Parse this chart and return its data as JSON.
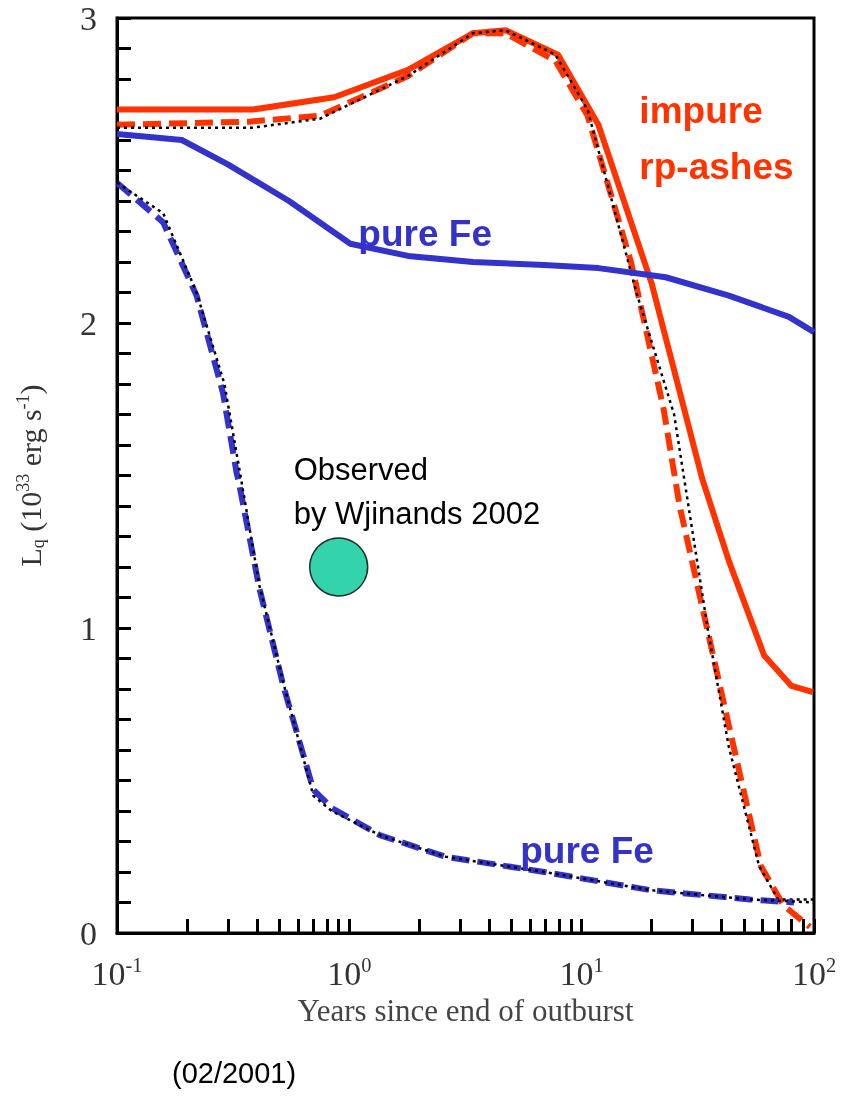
{
  "chart_data": {
    "type": "line",
    "xlabel": "Years since end of outburst",
    "ylabel": "L$_{q}$ (10$^{33}$ erg s$^{-1}$)",
    "log": "x",
    "xlim": [
      0.1,
      100
    ],
    "ylim": [
      0,
      3
    ],
    "xticks": [
      {
        "value": 0.1,
        "label": "10$^{-1}$"
      },
      {
        "value": 0.2,
        "label": null
      },
      {
        "value": 0.3,
        "label": null
      },
      {
        "value": 0.4,
        "label": null
      },
      {
        "value": 0.5,
        "label": null
      },
      {
        "value": 0.6,
        "label": null
      },
      {
        "value": 0.7,
        "label": null
      },
      {
        "value": 0.8,
        "label": null
      },
      {
        "value": 0.9,
        "label": null
      },
      {
        "value": 1,
        "label": "10$^{0}$"
      },
      {
        "value": 2,
        "label": null
      },
      {
        "value": 3,
        "label": null
      },
      {
        "value": 4,
        "label": null
      },
      {
        "value": 5,
        "label": null
      },
      {
        "value": 6,
        "label": null
      },
      {
        "value": 7,
        "label": null
      },
      {
        "value": 8,
        "label": null
      },
      {
        "value": 9,
        "label": null
      },
      {
        "value": 10,
        "label": "10$^{1}$"
      },
      {
        "value": 20,
        "label": null
      },
      {
        "value": 30,
        "label": null
      },
      {
        "value": 40,
        "label": null
      },
      {
        "value": 50,
        "label": null
      },
      {
        "value": 60,
        "label": null
      },
      {
        "value": 70,
        "label": null
      },
      {
        "value": 80,
        "label": null
      },
      {
        "value": 90,
        "label": null
      },
      {
        "value": 100,
        "label": "10$^{2}$"
      }
    ],
    "yticks": [
      0,
      {
        "value": 0.1,
        "label": null
      },
      {
        "value": 0.2,
        "label": null
      },
      {
        "value": 0.3,
        "label": null
      },
      {
        "value": 0.4,
        "label": null
      },
      {
        "value": 0.5,
        "label": null
      },
      {
        "value": 0.6,
        "label": null
      },
      {
        "value": 0.7,
        "label": null
      },
      {
        "value": 0.8,
        "label": null
      },
      {
        "value": 0.9,
        "label": null
      },
      1,
      {
        "value": 1.1,
        "label": null
      },
      {
        "value": 1.2,
        "label": null
      },
      {
        "value": 1.3,
        "label": null
      },
      {
        "value": 1.4,
        "label": null
      },
      {
        "value": 1.5,
        "label": null
      },
      {
        "value": 1.6,
        "label": null
      },
      {
        "value": 1.7,
        "label": null
      },
      {
        "value": 1.8,
        "label": null
      },
      {
        "value": 1.9,
        "label": null
      },
      2,
      {
        "value": 2.1,
        "label": null
      },
      {
        "value": 2.2,
        "label": null
      },
      {
        "value": 2.3,
        "label": null
      },
      {
        "value": 2.4,
        "label": null
      },
      {
        "value": 2.5,
        "label": null
      },
      {
        "value": 2.6,
        "label": null
      },
      {
        "value": 2.7,
        "label": null
      },
      {
        "value": 2.8,
        "label": null
      },
      {
        "value": 2.9,
        "label": null
      },
      3
    ],
    "grid": false,
    "legend": false,
    "marker": "none",
    "series": [
      {
        "name": "impure rp-ashes",
        "color": "#ff3300",
        "line_style": "solid",
        "x": [
          0.1,
          0.385,
          0.86,
          1.79,
          3.4,
          4.7,
          7.9,
          11.8,
          20,
          33,
          43,
          61,
          80,
          99
        ],
        "values": [
          2.7,
          2.7,
          2.74,
          2.83,
          2.95,
          2.96,
          2.88,
          2.65,
          2.13,
          1.49,
          1.22,
          0.91,
          0.81,
          0.79
        ]
      },
      {
        "color": "#ff3300",
        "line_style": "dashed",
        "x": [
          0.1,
          0.37,
          0.75,
          1.79,
          3.4,
          4.7,
          7.7,
          10.6,
          16.3,
          22.5,
          26.4,
          43,
          59,
          74,
          96
        ],
        "values": [
          2.65,
          2.66,
          2.68,
          2.81,
          2.95,
          2.95,
          2.86,
          2.68,
          2.2,
          1.72,
          1.4,
          0.68,
          0.22,
          0.09,
          0.02
        ]
      },
      {
        "color": "#000000",
        "line_style": "dotted",
        "x": [
          0.1,
          0.38,
          0.75,
          1.79,
          3.4,
          4.7,
          7.7,
          10.6,
          17.2,
          25,
          35,
          43,
          58,
          70,
          100
        ],
        "values": [
          2.64,
          2.64,
          2.67,
          2.81,
          2.95,
          2.96,
          2.88,
          2.7,
          2.1,
          1.7,
          0.99,
          0.61,
          0.22,
          0.11,
          0.11
        ]
      },
      {
        "name": "pure Fe",
        "color": "#3333cc",
        "line_style": "solid",
        "x": [
          0.1,
          0.19,
          0.3,
          0.55,
          1.01,
          1.79,
          3.4,
          6.9,
          11.8,
          23,
          43,
          78,
          100
        ],
        "values": [
          2.62,
          2.6,
          2.52,
          2.4,
          2.26,
          2.22,
          2.2,
          2.19,
          2.18,
          2.15,
          2.09,
          2.02,
          1.97
        ]
      },
      {
        "name": "pure Fe",
        "color": "#3333cc",
        "line_style": "dashed",
        "x": [
          0.1,
          0.158,
          0.22,
          0.286,
          0.327,
          0.336,
          0.41,
          0.52,
          0.7,
          0.84,
          1.36,
          2.6,
          6.9,
          20,
          53,
          82
        ],
        "values": [
          2.46,
          2.33,
          2.09,
          1.77,
          1.51,
          1.47,
          1.13,
          0.81,
          0.47,
          0.41,
          0.32,
          0.25,
          0.2,
          0.14,
          0.11,
          0.1
        ]
      },
      {
        "color": "#000000",
        "line_style": "dotted",
        "x": [
          0.1,
          0.158,
          0.22,
          0.29,
          0.34,
          0.41,
          0.52,
          0.7,
          0.84,
          1.36,
          2.6,
          6.9,
          20,
          53,
          100
        ],
        "values": [
          2.46,
          2.36,
          2.1,
          1.8,
          1.5,
          1.14,
          0.82,
          0.45,
          0.4,
          0.32,
          0.25,
          0.2,
          0.14,
          0.11,
          0.1
        ]
      },
      {
        "type": "scatter",
        "marker": "circle",
        "color": "#00c896",
        "x": [
          0.9
        ],
        "values": [
          1.2
        ]
      }
    ],
    "annotations": [
      {
        "text": "Observed\nby Wjinands 2002",
        "x": 0.9,
        "y": 1.2
      },
      "(02/2001)"
    ]
  }
}
